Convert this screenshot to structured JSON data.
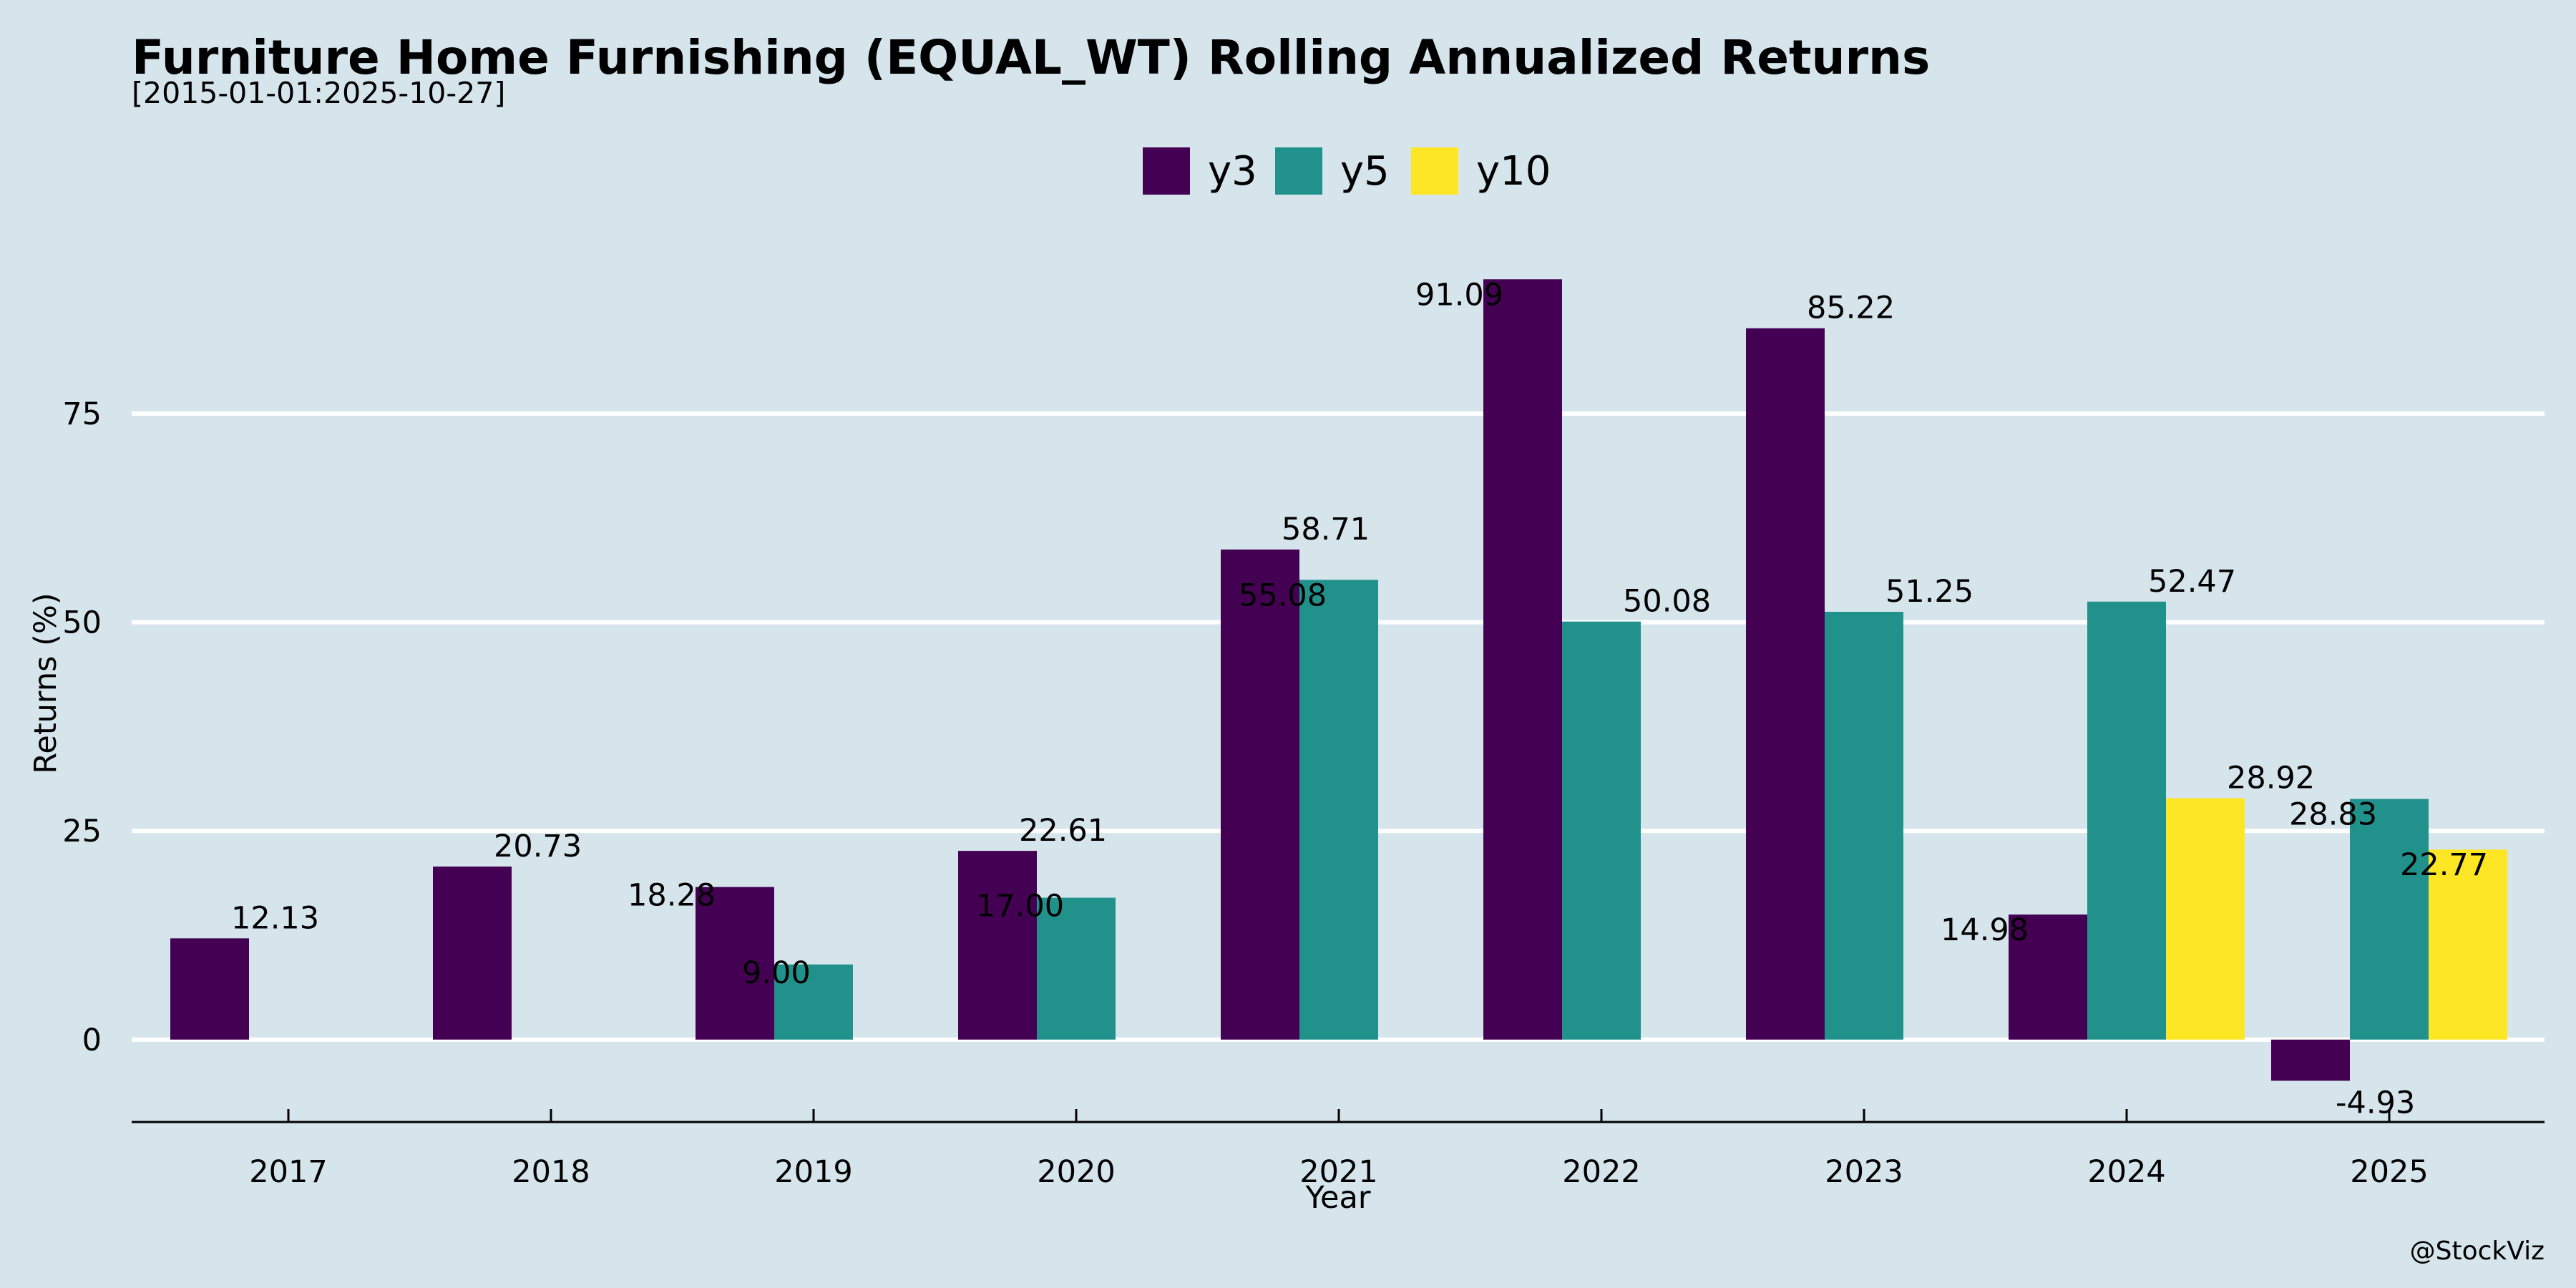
{
  "chart_data": {
    "type": "bar",
    "title": "Furniture Home Furnishing (EQUAL_WT) Rolling Annualized Returns",
    "subtitle": "[2015-01-01:2025-10-27]",
    "xlabel": "Year",
    "ylabel": "Returns (%)",
    "credit": "@StockViz",
    "categories": [
      "2017",
      "2018",
      "2019",
      "2020",
      "2021",
      "2022",
      "2023",
      "2024",
      "2025"
    ],
    "series": [
      {
        "name": "y3",
        "color": "#440154",
        "values": [
          12.13,
          20.73,
          18.28,
          22.61,
          58.71,
          91.09,
          85.22,
          14.98,
          -4.93
        ]
      },
      {
        "name": "y5",
        "color": "#21918c",
        "values": [
          null,
          null,
          9.0,
          17.0,
          55.08,
          50.08,
          51.25,
          52.47,
          28.83
        ]
      },
      {
        "name": "y10",
        "color": "#fde725",
        "values": [
          null,
          null,
          null,
          null,
          null,
          null,
          null,
          28.92,
          22.77
        ]
      }
    ],
    "yticks": [
      0,
      25,
      50,
      75
    ],
    "ylim": [
      -9.7,
      99
    ],
    "grid": "horizontal",
    "legend_position": "top-center"
  }
}
